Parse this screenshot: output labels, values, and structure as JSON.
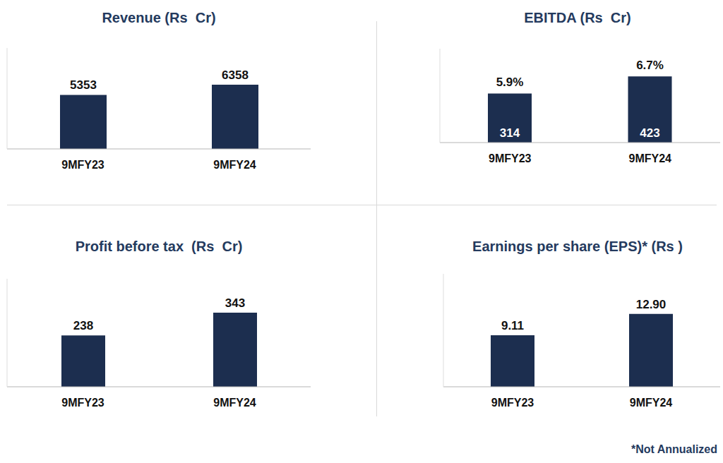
{
  "chart_data": [
    {
      "type": "bar",
      "title": "Revenue (Rs  Cr)",
      "categories": [
        "9MFY23",
        "9MFY24"
      ],
      "values": [
        5353,
        6358
      ],
      "color": "#1c2e4f",
      "ylim": [
        0,
        10000
      ],
      "tick_labels": "x",
      "data_labels": true,
      "grid": false
    },
    {
      "type": "bar",
      "title": "EBITDA (Rs  Cr)",
      "categories": [
        "9MFY23",
        "9MFY24"
      ],
      "values": [
        314,
        423
      ],
      "margins": [
        5.9,
        6.7
      ],
      "margin_labels": [
        "5.9%",
        "6.7%"
      ],
      "color": "#1c2e4f",
      "ylim": [
        0,
        600
      ],
      "tick_labels": "x",
      "data_labels": true,
      "grid": false
    },
    {
      "type": "bar",
      "title": "Profit before tax  (Rs  Cr)",
      "categories": [
        "9MFY23",
        "9MFY24"
      ],
      "values": [
        238,
        343
      ],
      "color": "#1c2e4f",
      "ylim": [
        0,
        500
      ],
      "tick_labels": "x",
      "data_labels": true,
      "grid": false
    },
    {
      "type": "bar",
      "title": "Earnings per share (EPS)* (Rs )",
      "categories": [
        "9MFY23",
        "9MFY24"
      ],
      "values": [
        9.11,
        12.9
      ],
      "value_labels": [
        "9.11",
        "12.90"
      ],
      "color": "#1c2e4f",
      "ylim": [
        0,
        20
      ],
      "tick_labels": "x",
      "data_labels": true,
      "grid": false,
      "annotation": "*Not Annualized"
    }
  ]
}
